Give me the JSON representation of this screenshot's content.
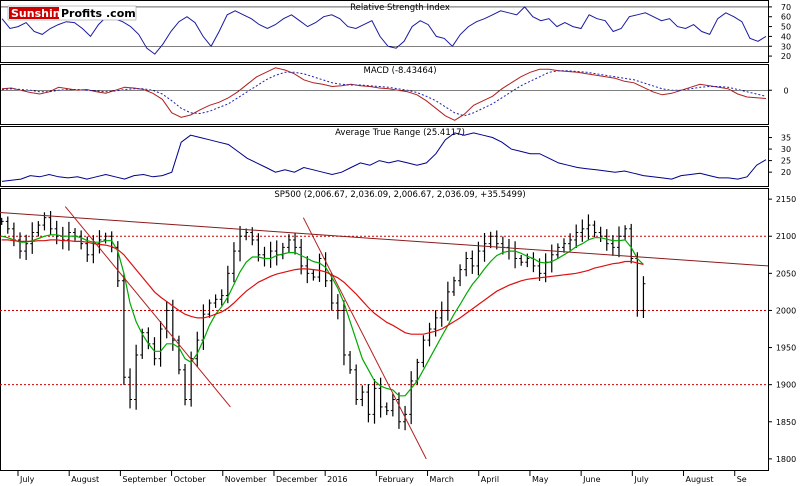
{
  "brand": {
    "part1": "Sunshine",
    "part2": "Profits",
    "part3": ".com"
  },
  "chart_data": [
    {
      "panel": "rsi",
      "type": "line",
      "title": "Relative Strength Index",
      "yticks": [
        20,
        30,
        40,
        50,
        60,
        70
      ],
      "ylim": [
        14,
        77
      ],
      "reference_lines": [
        30,
        70
      ],
      "series": [
        {
          "values": [
            58,
            48,
            50,
            54,
            45,
            42,
            48,
            52,
            55,
            54,
            48,
            40,
            52,
            60,
            58,
            55,
            50,
            42,
            28,
            22,
            32,
            45,
            55,
            60,
            54,
            40,
            30,
            45,
            62,
            66,
            62,
            58,
            52,
            48,
            52,
            58,
            62,
            56,
            50,
            54,
            60,
            62,
            58,
            50,
            48,
            52,
            56,
            40,
            30,
            28,
            35,
            50,
            56,
            52,
            40,
            38,
            30,
            42,
            50,
            55,
            58,
            62,
            66,
            64,
            62,
            70,
            60,
            56,
            58,
            50,
            54,
            50,
            48,
            62,
            58,
            56,
            45,
            48,
            60,
            62,
            64,
            60,
            56,
            58,
            50,
            48,
            52,
            45,
            42,
            58,
            64,
            60,
            55,
            38,
            35,
            40
          ]
        }
      ]
    },
    {
      "panel": "macd",
      "type": "line",
      "title": "MACD (-8.43464)",
      "yticks": [
        0
      ],
      "ylim": [
        -45,
        35
      ],
      "zero_line": 0,
      "series": [
        {
          "color": "#b02020",
          "values": [
            2,
            3,
            0,
            -3,
            -5,
            -2,
            4,
            2,
            0,
            1,
            -2,
            -4,
            0,
            4,
            3,
            1,
            -4,
            -12,
            -30,
            -36,
            -33,
            -26,
            -20,
            -16,
            -10,
            -2,
            8,
            18,
            24,
            30,
            27,
            22,
            14,
            10,
            8,
            5,
            6,
            8,
            6,
            5,
            3,
            2,
            0,
            -2,
            -6,
            -14,
            -24,
            -34,
            -40,
            -32,
            -20,
            -14,
            -8,
            2,
            10,
            18,
            24,
            28,
            28,
            26,
            25,
            24,
            22,
            20,
            18,
            16,
            12,
            10,
            4,
            -2,
            -6,
            -4,
            0,
            4,
            8,
            6,
            4,
            2,
            -5,
            -9,
            -10,
            -11
          ]
        },
        {
          "color": "#2020b0",
          "dashed": true,
          "values": [
            1,
            2,
            1,
            0,
            -2,
            -2,
            0,
            1,
            1,
            0,
            -1,
            -2,
            -1,
            1,
            2,
            2,
            0,
            -5,
            -14,
            -24,
            -30,
            -31,
            -28,
            -23,
            -18,
            -10,
            -2,
            6,
            14,
            20,
            24,
            24,
            22,
            18,
            14,
            10,
            8,
            7,
            7,
            6,
            5,
            4,
            2,
            0,
            -3,
            -8,
            -14,
            -22,
            -30,
            -34,
            -30,
            -24,
            -18,
            -10,
            -2,
            6,
            12,
            18,
            24,
            26,
            26,
            25,
            24,
            22,
            20,
            18,
            16,
            14,
            10,
            6,
            2,
            0,
            0,
            2,
            4,
            5,
            5,
            4,
            1,
            -2,
            -5,
            -8
          ]
        }
      ]
    },
    {
      "panel": "atr",
      "type": "line",
      "title": "Average True Range (25.4117)",
      "yticks": [
        20,
        25,
        30,
        35
      ],
      "ylim": [
        14,
        40
      ],
      "series": [
        {
          "color": "#00008b",
          "values": [
            16,
            16.5,
            17,
            18.5,
            18,
            19,
            18,
            17.5,
            18,
            17,
            18,
            19,
            18,
            17,
            18.5,
            19,
            18,
            18.5,
            20,
            33,
            36,
            35,
            34,
            33,
            32,
            29,
            26,
            24,
            22,
            20,
            21,
            20,
            22,
            21,
            20,
            19,
            20,
            22,
            24,
            23,
            25,
            24,
            25,
            24,
            23,
            24,
            28,
            34,
            37,
            36,
            37,
            36,
            35,
            33,
            30,
            29,
            28,
            28,
            26,
            24,
            23,
            22,
            21.5,
            21,
            20.5,
            20,
            20.5,
            19.5,
            18.5,
            18,
            17.5,
            17,
            18.5,
            19,
            19.5,
            18.5,
            17.5,
            17.5,
            17,
            18,
            23,
            25.4
          ]
        }
      ]
    },
    {
      "panel": "price",
      "type": "ohlc",
      "title": "SP500 (2,006.67, 2,036.09, 2,006.67, 2,036.09, +35.5499)",
      "yticks": [
        1800,
        1850,
        1900,
        1950,
        2000,
        2050,
        2100,
        2150
      ],
      "ylim": [
        1785,
        2165
      ],
      "xticks": [
        "July",
        "August",
        "September",
        "October",
        "November",
        "December",
        "2016",
        "February",
        "March",
        "April",
        "May",
        "June",
        "July",
        "August",
        "Se"
      ],
      "closes": [
        2120,
        2110,
        2095,
        2080,
        2090,
        2105,
        2115,
        2125,
        2110,
        2100,
        2095,
        2105,
        2100,
        2090,
        2075,
        2090,
        2095,
        2100,
        2085,
        2040,
        1910,
        1880,
        1940,
        1970,
        1955,
        1935,
        1975,
        2000,
        1960,
        1920,
        1880,
        1935,
        1960,
        1995,
        2010,
        2015,
        2020,
        2050,
        2080,
        2100,
        2105,
        2095,
        2075,
        2070,
        2080,
        2075,
        2085,
        2095,
        2085,
        2060,
        2050,
        2045,
        2070,
        2040,
        2010,
        2000,
        1940,
        1920,
        1880,
        1890,
        1860,
        1895,
        1870,
        1865,
        1880,
        1850,
        1860,
        1905,
        1930,
        1960,
        1975,
        1990,
        2000,
        2025,
        2040,
        2055,
        2070,
        2060,
        2080,
        2090,
        2100,
        2090,
        2085,
        2080,
        2070,
        2065,
        2070,
        2060,
        2050,
        2065,
        2075,
        2085,
        2090,
        2095,
        2105,
        2110,
        2115,
        2105,
        2100,
        2090,
        2085,
        2100,
        2110,
        2070,
        2000,
        2036
      ],
      "series": [
        {
          "name": "",
          "color": "#00aa00",
          "values": [
            2100,
            2098,
            2095,
            2092,
            2092,
            2094,
            2097,
            2100,
            2102,
            2102,
            2100,
            2100,
            2100,
            2098,
            2094,
            2092,
            2092,
            2094,
            2094,
            2080,
            2050,
            2010,
            1985,
            1968,
            1955,
            1945,
            1945,
            1955,
            1955,
            1950,
            1935,
            1930,
            1942,
            1960,
            1980,
            1995,
            2005,
            2018,
            2035,
            2052,
            2065,
            2072,
            2072,
            2070,
            2070,
            2074,
            2076,
            2078,
            2078,
            2074,
            2070,
            2066,
            2064,
            2058,
            2045,
            2030,
            2010,
            1985,
            1960,
            1935,
            1920,
            1905,
            1898,
            1895,
            1893,
            1885,
            1885,
            1895,
            1905,
            1920,
            1935,
            1950,
            1965,
            1980,
            1995,
            2008,
            2022,
            2035,
            2045,
            2056,
            2066,
            2074,
            2078,
            2080,
            2080,
            2077,
            2073,
            2070,
            2065,
            2064,
            2066,
            2070,
            2075,
            2080,
            2086,
            2090,
            2095,
            2098,
            2098,
            2096,
            2094,
            2094,
            2095,
            2085,
            2070,
            2062
          ]
        },
        {
          "name": "",
          "color": "#dd1111",
          "values": [
            2095,
            2095,
            2094,
            2093,
            2093,
            2093,
            2094,
            2094,
            2095,
            2095,
            2094,
            2094,
            2093,
            2093,
            2092,
            2090,
            2089,
            2088,
            2086,
            2082,
            2075,
            2065,
            2055,
            2045,
            2035,
            2025,
            2018,
            2012,
            2006,
            2000,
            1995,
            1992,
            1990,
            1990,
            1992,
            1995,
            1998,
            2003,
            2010,
            2018,
            2026,
            2032,
            2038,
            2042,
            2046,
            2049,
            2051,
            2053,
            2055,
            2056,
            2056,
            2055,
            2054,
            2052,
            2048,
            2044,
            2038,
            2030,
            2022,
            2013,
            2004,
            1996,
            1990,
            1984,
            1980,
            1975,
            1970,
            1968,
            1968,
            1968,
            1970,
            1972,
            1975,
            1980,
            1985,
            1990,
            1996,
            2002,
            2008,
            2014,
            2020,
            2026,
            2030,
            2034,
            2037,
            2040,
            2042,
            2043,
            2044,
            2045,
            2046,
            2047,
            2048,
            2049,
            2050,
            2052,
            2054,
            2057,
            2059,
            2061,
            2063,
            2064,
            2066,
            2066,
            2064,
            2062
          ]
        }
      ],
      "reference_lines": [
        2100,
        2000,
        1900
      ],
      "trendlines": [
        {
          "color": "#8b1a1a",
          "from": [
            0,
            2132
          ],
          "to": [
            1.0,
            2060
          ]
        },
        {
          "color": "#b22222",
          "from": [
            0.085,
            2140
          ],
          "to": [
            0.3,
            1870
          ]
        },
        {
          "color": "#b22222",
          "from": [
            0.395,
            2125
          ],
          "to": [
            0.555,
            1800
          ]
        }
      ]
    }
  ]
}
